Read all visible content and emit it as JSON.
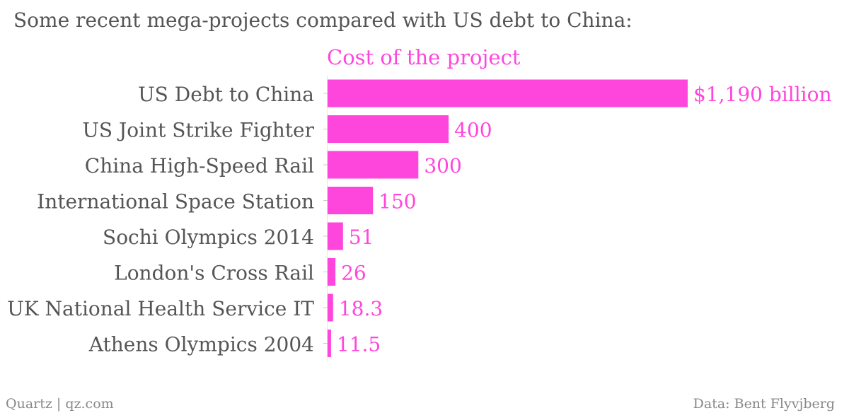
{
  "title": "Some recent mega-projects compared with US debt to China:",
  "footer": {
    "source_left": "Quartz | qz.com",
    "source_right": "Data: Bent Flyvjberg"
  },
  "colors": {
    "bar": "#ff46dc",
    "text": "#555555",
    "footer": "#888888"
  },
  "chart_data": {
    "type": "bar",
    "orientation": "horizontal",
    "categories": [
      "US Debt to China",
      "US Joint Strike Fighter",
      "China High-Speed Rail",
      "International Space Station",
      "Sochi Olympics 2014",
      "London's Cross Rail",
      "UK National Health Service IT",
      "Athens Olympics 2004"
    ],
    "series": [
      {
        "name": "Cost of the project",
        "values": [
          1190,
          400,
          300,
          150,
          51,
          26,
          18.3,
          11.5
        ]
      }
    ],
    "data_labels": [
      "$1,190 billion",
      "400",
      "300",
      "150",
      "51",
      "26",
      "18.3",
      "11.5"
    ],
    "xlim": [
      0,
      1190
    ],
    "grid": false,
    "legend": "top"
  }
}
